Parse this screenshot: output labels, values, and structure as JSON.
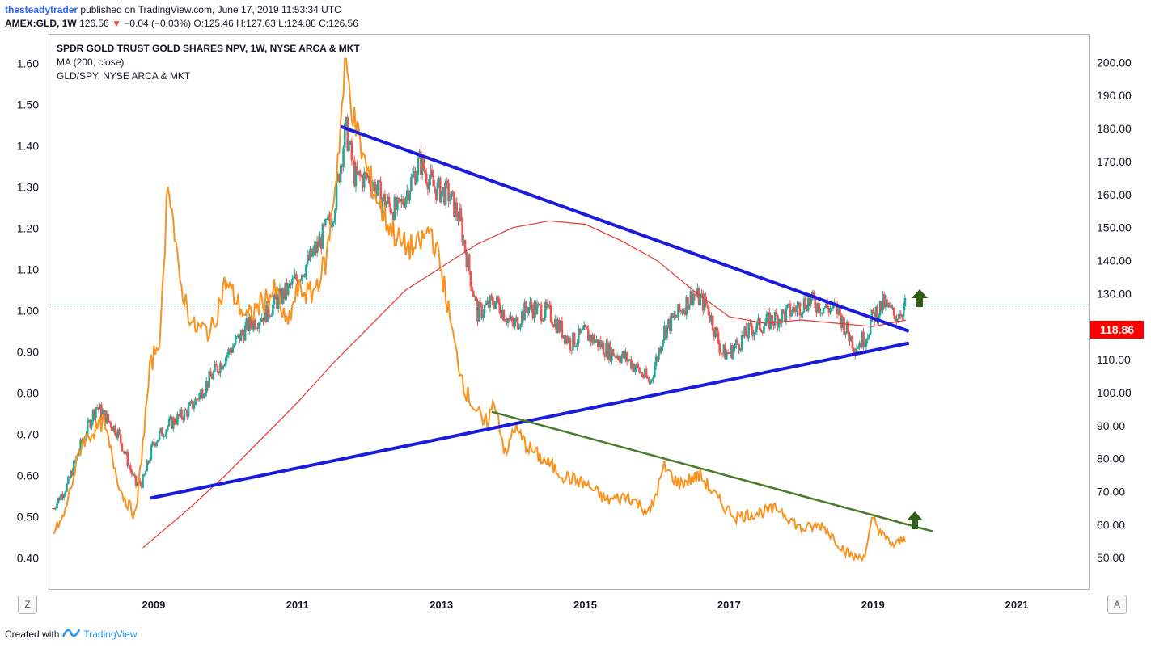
{
  "header": {
    "author": "thesteadytrader",
    "published": "published on TradingView.com, June 17, 2019 11:53:34 UTC",
    "symbol": "AMEX:GLD, 1W",
    "last": "126.56",
    "change_arrow": "▼",
    "change": "−0.04 (−0.03%)",
    "ohlc": "O:125.46 H:127.63 L:124.88 C:126.56"
  },
  "legend": {
    "title": "SPDR GOLD TRUST GOLD SHARES NPV, 1W, NYSE ARCA & MKT",
    "ma": "MA (200, close)",
    "ratio": "GLD/SPY, NYSE ARCA & MKT"
  },
  "footer": {
    "created": "Created with",
    "brand": "TradingView",
    "logo_icon": "tradingview-logo-icon"
  },
  "corners": {
    "left": "Z",
    "right": "A"
  },
  "price_label": "118.86",
  "colors": {
    "up": "#26a69a",
    "down": "#ef5350",
    "ratio": "#f7931e",
    "ma": "#e53935",
    "triangle": "#1b1bdb",
    "downtrend": "#4a7b2a",
    "arrow": "#2e5d14",
    "lastline": "#26a69a"
  },
  "chart_data": {
    "type": "line",
    "x_ticks": [
      "2009",
      "2011",
      "2013",
      "2015",
      "2017",
      "2019",
      "2021"
    ],
    "y_left_ticks": [
      "1.60",
      "1.50",
      "1.40",
      "1.30",
      "1.20",
      "1.10",
      "1.00",
      "0.90",
      "0.80",
      "0.70",
      "0.60",
      "0.50",
      "0.40"
    ],
    "y_right_ticks": [
      "200.00",
      "190.00",
      "180.00",
      "170.00",
      "160.00",
      "150.00",
      "140.00",
      "130.00",
      "120.00",
      "110.00",
      "100.00",
      "90.00",
      "80.00",
      "70.00",
      "60.00",
      "50.00"
    ],
    "x_range": [
      2007.55,
      2022.0
    ],
    "y_left_range": [
      0.325,
      1.67
    ],
    "y_right_range": [
      40.5,
      208.4
    ],
    "gld_price": {
      "name": "GLD",
      "x": [
        2007.6,
        2007.8,
        2008.0,
        2008.2,
        2008.5,
        2008.75,
        2008.85,
        2009.0,
        2009.2,
        2009.5,
        2009.9,
        2010.3,
        2010.6,
        2010.9,
        2011.1,
        2011.3,
        2011.5,
        2011.67,
        2011.8,
        2012.0,
        2012.2,
        2012.4,
        2012.7,
        2012.9,
        2013.1,
        2013.25,
        2013.5,
        2013.75,
        2014.0,
        2014.2,
        2014.5,
        2014.8,
        2015.0,
        2015.3,
        2015.6,
        2015.9,
        2016.1,
        2016.3,
        2016.5,
        2016.7,
        2016.9,
        2017.0,
        2017.3,
        2017.6,
        2017.9,
        2018.1,
        2018.3,
        2018.5,
        2018.75,
        2018.9,
        2019.0,
        2019.15,
        2019.3,
        2019.46
      ],
      "close": [
        65,
        72,
        85,
        96,
        88,
        72,
        73,
        85,
        90,
        95,
        108,
        120,
        125,
        132,
        138,
        145,
        155,
        180,
        165,
        165,
        158,
        155,
        170,
        162,
        160,
        153,
        124,
        128,
        120,
        126,
        124,
        115,
        118,
        113,
        110,
        103,
        119,
        124,
        130,
        126,
        112,
        112,
        119,
        122,
        125,
        128,
        126,
        125,
        114,
        117,
        123,
        127,
        123,
        126.56
      ]
    },
    "ma200": {
      "name": "MA (200, close)",
      "x": [
        2008.85,
        2009.5,
        2010.0,
        2010.5,
        2011.0,
        2011.5,
        2012.0,
        2012.5,
        2013.0,
        2013.5,
        2014.0,
        2014.5,
        2015.0,
        2015.5,
        2016.0,
        2016.5,
        2017.0,
        2017.5,
        2018.0,
        2018.5,
        2019.0,
        2019.46
      ],
      "y": [
        53,
        65,
        75,
        86,
        97,
        109,
        120,
        131,
        138,
        145,
        150,
        152,
        151,
        146,
        140,
        131,
        123,
        121,
        122,
        121,
        120,
        122
      ]
    },
    "gld_spy_ratio": {
      "name": "GLD/SPY, NYSE ARCA & MKT",
      "x": [
        2007.6,
        2007.75,
        2008.0,
        2008.3,
        2008.55,
        2008.75,
        2008.95,
        2009.1,
        2009.2,
        2009.35,
        2009.55,
        2009.8,
        2010.0,
        2010.3,
        2010.5,
        2010.7,
        2010.85,
        2011.0,
        2011.2,
        2011.4,
        2011.55,
        2011.67,
        2011.8,
        2011.95,
        2012.2,
        2012.45,
        2012.65,
        2012.85,
        2013.0,
        2013.2,
        2013.35,
        2013.45,
        2013.6,
        2013.75,
        2013.9,
        2014.0,
        2014.2,
        2014.4,
        2014.7,
        2015.0,
        2015.3,
        2015.6,
        2015.9,
        2016.1,
        2016.3,
        2016.6,
        2016.9,
        2017.1,
        2017.4,
        2017.7,
        2018.0,
        2018.3,
        2018.6,
        2018.75,
        2018.9,
        2019.0,
        2019.15,
        2019.3,
        2019.46
      ],
      "y": [
        0.46,
        0.5,
        0.68,
        0.73,
        0.56,
        0.5,
        0.86,
        0.95,
        1.34,
        1.08,
        0.96,
        0.95,
        1.07,
        0.98,
        1.02,
        1.05,
        0.96,
        1.05,
        1.04,
        1.12,
        1.35,
        1.6,
        1.45,
        1.35,
        1.23,
        1.16,
        1.15,
        1.2,
        1.1,
        0.9,
        0.8,
        0.77,
        0.72,
        0.78,
        0.64,
        0.72,
        0.67,
        0.64,
        0.6,
        0.58,
        0.54,
        0.55,
        0.51,
        0.62,
        0.58,
        0.6,
        0.53,
        0.5,
        0.51,
        0.52,
        0.47,
        0.48,
        0.42,
        0.4,
        0.41,
        0.5,
        0.45,
        0.43,
        0.45
      ]
    },
    "lines": [
      {
        "name": "triangle-upper",
        "x": [
          2011.6,
          2019.5
        ],
        "y_right": [
          180.6,
          118.6
        ]
      },
      {
        "name": "triangle-lower",
        "x": [
          2008.95,
          2019.5
        ],
        "y_right": [
          68.0,
          115.0
        ]
      },
      {
        "name": "ratio-downtrend",
        "x": [
          2013.7,
          2019.83
        ],
        "y_left": [
          0.755,
          0.465
        ]
      }
    ],
    "last_price": 126.56,
    "grid": false
  }
}
